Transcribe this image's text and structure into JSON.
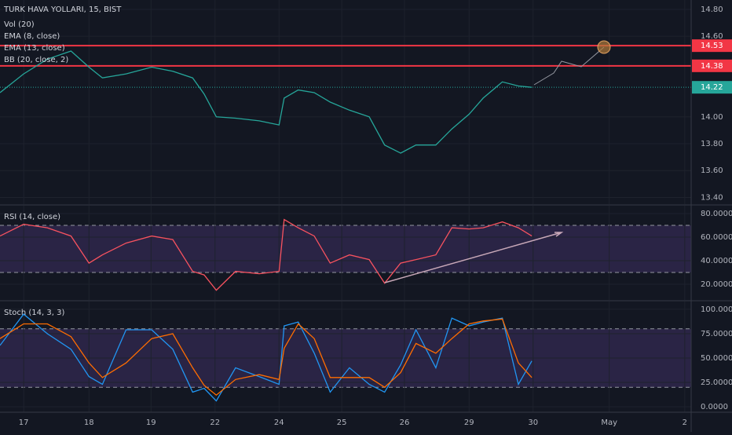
{
  "chart_data": [
    {
      "type": "line",
      "title": "TURK HAVA YOLLARI, 15, BIST",
      "studies": [
        "Vol (20)",
        "EMA (8, close)",
        "EMA (13, close)",
        "BB (20, close, 2)"
      ],
      "x": [
        -0.37,
        0,
        0.37,
        0.74,
        1.02,
        1.23,
        1.6,
        2,
        2.33,
        2.64,
        2.82,
        3.01,
        3.31,
        3.68,
        3.99,
        4.07,
        4.29,
        4.54,
        4.79,
        5.09,
        5.4,
        5.64,
        5.89,
        6.13,
        6.44,
        6.69,
        6.96,
        7.18,
        7.48,
        7.73,
        7.94
      ],
      "series": [
        {
          "color": "#26a69a",
          "values": [
            14.18,
            14.32,
            14.43,
            14.49,
            14.37,
            14.29,
            14.32,
            14.37,
            14.34,
            14.29,
            14.17,
            14.0,
            13.99,
            13.97,
            13.94,
            14.14,
            14.2,
            14.18,
            14.11,
            14.05,
            14.0,
            13.79,
            13.73,
            13.79,
            13.79,
            13.91,
            14.02,
            14.14,
            14.26,
            14.23,
            14.22
          ]
        }
      ],
      "levels": [
        {
          "value": 14.53,
          "color": "#f23645"
        },
        {
          "value": 14.38,
          "color": "#f23645"
        },
        {
          "value": 14.22,
          "color": "#26a69a"
        }
      ],
      "xlim": [
        -0.37,
        10.43
      ],
      "ylim": [
        13.35,
        14.87
      ],
      "yticks": [
        {
          "value": 14.8,
          "label": "14.80"
        },
        {
          "value": 14.6,
          "label": "14.60"
        },
        {
          "value": 14.0,
          "label": "14.00"
        },
        {
          "value": 13.8,
          "label": "13.80"
        },
        {
          "value": 13.6,
          "label": "13.60"
        },
        {
          "value": 13.4,
          "label": "13.40"
        }
      ],
      "grid": true
    },
    {
      "type": "line",
      "title": "RSI (14, close)",
      "x": [
        -0.37,
        0,
        0.37,
        0.74,
        1.02,
        1.23,
        1.6,
        2,
        2.33,
        2.64,
        2.82,
        3.01,
        3.31,
        3.68,
        3.99,
        4.07,
        4.29,
        4.54,
        4.79,
        5.09,
        5.4,
        5.64,
        5.89,
        6.13,
        6.44,
        6.69,
        6.96,
        7.18,
        7.48,
        7.73,
        7.94
      ],
      "series": [
        {
          "color": "#f7525f",
          "values": [
            61,
            71,
            68,
            61,
            38,
            45,
            55,
            61,
            58,
            31,
            28,
            15,
            31,
            29,
            31,
            75,
            68,
            61,
            38,
            45,
            41,
            21,
            38,
            41,
            45,
            68,
            67,
            68,
            73,
            68,
            61
          ]
        }
      ],
      "bands": [
        30,
        70
      ],
      "xlim": [
        -0.37,
        10.43
      ],
      "ylim": [
        6.7,
        86.7
      ],
      "yticks": [
        {
          "value": 80,
          "label": "80.0000"
        },
        {
          "value": 60,
          "label": "60.0000"
        },
        {
          "value": 40,
          "label": "40.0000"
        },
        {
          "value": 20,
          "label": "20.0000"
        }
      ],
      "grid": true
    },
    {
      "type": "line",
      "title": "Stoch (14, 3, 3)",
      "x": [
        -0.37,
        0,
        0.37,
        0.74,
        1.02,
        1.23,
        1.6,
        2,
        2.33,
        2.64,
        2.82,
        3.01,
        3.31,
        3.68,
        3.99,
        4.07,
        4.29,
        4.54,
        4.79,
        5.09,
        5.4,
        5.64,
        5.89,
        6.13,
        6.44,
        6.69,
        6.96,
        7.18,
        7.48,
        7.73,
        7.94
      ],
      "series": [
        {
          "color": "#2196f3",
          "values": [
            63,
            95,
            75,
            59,
            31,
            23,
            79,
            79,
            59,
            15,
            19,
            6,
            40,
            31,
            23,
            83,
            87,
            55,
            15,
            40,
            23,
            15,
            43,
            79,
            40,
            91,
            83,
            87,
            91,
            23,
            47
          ]
        },
        {
          "color": "#ff6d00",
          "values": [
            70,
            85,
            85,
            72,
            45,
            30,
            45,
            70,
            75,
            40,
            22,
            12,
            28,
            33,
            28,
            60,
            85,
            70,
            30,
            30,
            30,
            20,
            35,
            65,
            55,
            70,
            85,
            88,
            90,
            45,
            30
          ]
        }
      ],
      "bands": [
        20,
        80
      ],
      "xlim": [
        -0.37,
        10.43
      ],
      "ylim": [
        -5.6,
        108
      ],
      "yticks": [
        {
          "value": 100,
          "label": "100.0000"
        },
        {
          "value": 75,
          "label": "75.0000"
        },
        {
          "value": 50,
          "label": "50.0000"
        },
        {
          "value": 25,
          "label": "25.0000"
        },
        {
          "value": 0,
          "label": "0.0000"
        }
      ],
      "xticks": [
        {
          "value": 0,
          "label": "17"
        },
        {
          "value": 1.02,
          "label": "18"
        },
        {
          "value": 1.99,
          "label": "19"
        },
        {
          "value": 2.99,
          "label": "22"
        },
        {
          "value": 3.99,
          "label": "24"
        },
        {
          "value": 4.97,
          "label": "25"
        },
        {
          "value": 5.95,
          "label": "26"
        },
        {
          "value": 6.96,
          "label": "29"
        },
        {
          "value": 7.96,
          "label": "30"
        },
        {
          "value": 9.15,
          "label": "May"
        },
        {
          "value": 10.33,
          "label": "2"
        }
      ],
      "grid": true
    }
  ]
}
